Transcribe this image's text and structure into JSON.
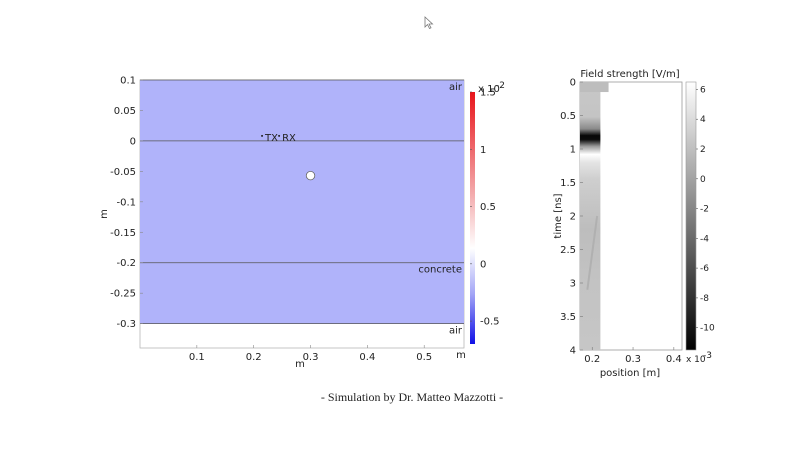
{
  "caption": "- Simulation by Dr. Matteo Mazzotti -",
  "chart_data": [
    {
      "type": "heatmap",
      "xlabel": "m",
      "ylabel": "m",
      "xlim": [
        0,
        0.57
      ],
      "ylim": [
        -0.34,
        0.1
      ],
      "x_ticks": [
        0.1,
        0.2,
        0.3,
        0.4,
        0.5
      ],
      "x_tick_labels": [
        "0.1",
        "0.2",
        "0.3",
        "0.4",
        "0.5"
      ],
      "x_unit_label": "m",
      "y_ticks": [
        0.1,
        0.05,
        0,
        -0.05,
        -0.1,
        -0.15,
        -0.2,
        -0.25,
        -0.3
      ],
      "y_tick_labels": [
        "0.1",
        "0.05",
        "0",
        "-0.05",
        "-0.1",
        "-0.15",
        "-0.2",
        "-0.25",
        "-0.3"
      ],
      "field_color": "#b0b3fa",
      "interfaces": [
        0,
        -0.2
      ],
      "regions": [
        {
          "label": "air",
          "y": 0.1
        },
        {
          "label": "concrete",
          "y": -0.2
        },
        {
          "label": "air",
          "y": -0.3
        }
      ],
      "annotations": [
        {
          "label": "TX",
          "x": 0.22,
          "y": 0.0
        },
        {
          "label": "RX",
          "x": 0.25,
          "y": 0.0
        }
      ],
      "inclusion": {
        "x": 0.3,
        "y": -0.057,
        "r": 0.007
      },
      "colorbar": {
        "exponent": "x 10",
        "power": "-2",
        "range": [
          -0.7,
          1.5
        ],
        "ticks": [
          1.5,
          1,
          0.5,
          0,
          -0.5
        ],
        "tick_labels": [
          "1.5",
          "1",
          "0.5",
          "0",
          "-0.5"
        ]
      }
    },
    {
      "type": "heatmap",
      "title": "Field strength [V/m]",
      "xlabel": "position [m]",
      "ylabel": "time [ns]",
      "xlim": [
        0.17,
        0.42
      ],
      "ylim": [
        0,
        4
      ],
      "x_ticks": [
        0.2,
        0.3,
        0.4
      ],
      "x_tick_labels": [
        "0.2",
        "0.3",
        "0.4"
      ],
      "y_ticks": [
        0,
        0.5,
        1,
        1.5,
        2,
        2.5,
        3,
        3.5,
        4
      ],
      "y_tick_labels": [
        "0",
        "0.5",
        "1",
        "1.5",
        "2",
        "2.5",
        "3",
        "3.5",
        "4"
      ],
      "filled_until_x": 0.22,
      "pulse_time_ns": 1.0,
      "colorbar": {
        "range": [
          -11.5,
          6.5
        ],
        "ticks": [
          6,
          4,
          2,
          0,
          -2,
          -4,
          -6,
          -8,
          -10
        ],
        "tick_labels": [
          "6",
          "4",
          "2",
          "0",
          "-2",
          "-4",
          "-6",
          "-8",
          "-10"
        ],
        "exponent": "x 10",
        "power": "-3"
      }
    }
  ]
}
